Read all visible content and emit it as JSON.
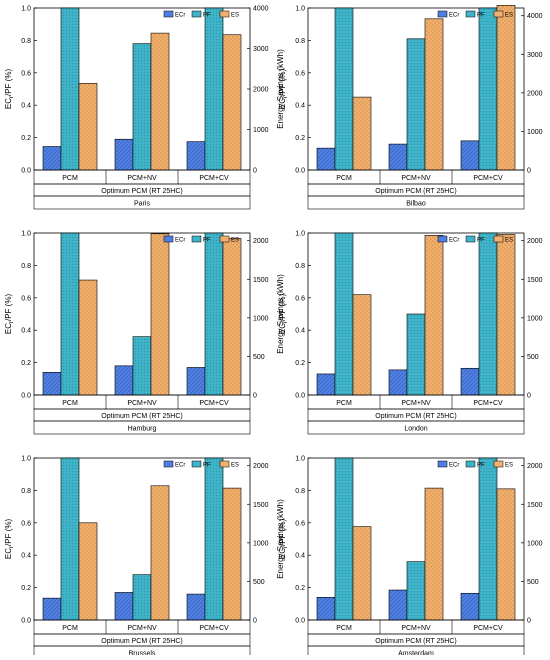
{
  "legend_labels": [
    "ECr",
    "PF",
    "ES"
  ],
  "colors": {
    "ECr": "#4f7fe0",
    "PF": "#3fb3c8",
    "ES": "#f1b06e",
    "axis": "#000000"
  },
  "chart_data": [
    {
      "type": "bar",
      "city": "Paris",
      "group_label": "Optimum PCM (RT 25HC)",
      "categories": [
        "PCM",
        "PCM+NV",
        "PCM+CV"
      ],
      "ylabel_left": "EC_r/PF (%)",
      "ylabel_right": "Energy Savings (kWh)",
      "ylim_left": [
        0,
        1.0
      ],
      "ylim_right": [
        0,
        4000
      ],
      "left_ticks": [
        "0.0",
        "0.2",
        "0.4",
        "0.6",
        "0.8",
        "1.0"
      ],
      "right_ticks": [
        "0",
        "1000",
        "2000",
        "3000",
        "4000"
      ],
      "legend": "top-right",
      "series": [
        {
          "name": "ECr",
          "axis": "left",
          "values": [
            0.145,
            0.19,
            0.175
          ]
        },
        {
          "name": "PF",
          "axis": "left",
          "values": [
            1.0,
            0.78,
            1.0
          ]
        },
        {
          "name": "ES",
          "axis": "right",
          "values": [
            2140,
            3380,
            3340
          ]
        }
      ]
    },
    {
      "type": "bar",
      "city": "Bilbao",
      "group_label": "Optimum PCM (RT 25HC)",
      "categories": [
        "PCM",
        "PCM+NV",
        "PCM+CV"
      ],
      "ylabel_left": "EC_r/PF (%)",
      "ylabel_right": "Energy Savings (kWh)",
      "ylim_left": [
        0,
        1.0
      ],
      "ylim_right": [
        0,
        4200
      ],
      "left_ticks": [
        "0.0",
        "0.2",
        "0.4",
        "0.6",
        "0.8",
        "1.0"
      ],
      "right_ticks": [
        "0",
        "1000",
        "2000",
        "3000",
        "4000"
      ],
      "legend": "top-right",
      "series": [
        {
          "name": "ECr",
          "axis": "left",
          "values": [
            0.135,
            0.16,
            0.18
          ]
        },
        {
          "name": "PF",
          "axis": "left",
          "values": [
            1.0,
            0.81,
            1.0
          ]
        },
        {
          "name": "ES",
          "axis": "right",
          "values": [
            1890,
            3920,
            4270
          ]
        }
      ]
    },
    {
      "type": "bar",
      "city": "Hamburg",
      "group_label": "Optimum PCM (RT 25HC)",
      "categories": [
        "PCM",
        "PCM+NV",
        "PCM+CV"
      ],
      "ylabel_left": "EC_r/PF (%)",
      "ylabel_right": "Energy Savings (kWh)",
      "ylim_left": [
        0,
        1.0
      ],
      "ylim_right": [
        0,
        2100
      ],
      "left_ticks": [
        "0.0",
        "0.2",
        "0.4",
        "0.6",
        "0.8",
        "1.0"
      ],
      "right_ticks": [
        "0",
        "500",
        "1000",
        "1500",
        "2000"
      ],
      "legend": "top-right",
      "series": [
        {
          "name": "ECr",
          "axis": "left",
          "values": [
            0.14,
            0.18,
            0.17
          ]
        },
        {
          "name": "PF",
          "axis": "left",
          "values": [
            1.0,
            0.36,
            1.0
          ]
        },
        {
          "name": "ES",
          "axis": "right",
          "values": [
            1490,
            2090,
            2030
          ]
        }
      ]
    },
    {
      "type": "bar",
      "city": "London",
      "group_label": "Optimum PCM (RT 25HC)",
      "categories": [
        "PCM",
        "PCM+NV",
        "PCM+CV"
      ],
      "ylabel_left": "EC_r/PF (%)",
      "ylabel_right": "Energy Savings (kWh)",
      "ylim_left": [
        0,
        1.0
      ],
      "ylim_right": [
        0,
        2100
      ],
      "left_ticks": [
        "0.0",
        "0.2",
        "0.4",
        "0.6",
        "0.8",
        "1.0"
      ],
      "right_ticks": [
        "0",
        "500",
        "1000",
        "1500",
        "2000"
      ],
      "legend": "top-right",
      "series": [
        {
          "name": "ECr",
          "axis": "left",
          "values": [
            0.13,
            0.155,
            0.165
          ]
        },
        {
          "name": "PF",
          "axis": "left",
          "values": [
            1.0,
            0.5,
            1.0
          ]
        },
        {
          "name": "ES",
          "axis": "right",
          "values": [
            1300,
            2070,
            2080
          ]
        }
      ]
    },
    {
      "type": "bar",
      "city": "Brussels",
      "group_label": "Optimum PCM (RT 25HC)",
      "categories": [
        "PCM",
        "PCM+NV",
        "PCM+CV"
      ],
      "ylabel_left": "EC_r/PF (%)",
      "ylabel_right": "Energy Savings (kWh)",
      "ylim_left": [
        0,
        1.0
      ],
      "ylim_right": [
        0,
        2100
      ],
      "left_ticks": [
        "0.0",
        "0.2",
        "0.4",
        "0.6",
        "0.8",
        "1.0"
      ],
      "right_ticks": [
        "0",
        "500",
        "1000",
        "1500",
        "2000"
      ],
      "legend": "top-right",
      "series": [
        {
          "name": "ECr",
          "axis": "left",
          "values": [
            0.135,
            0.17,
            0.16
          ]
        },
        {
          "name": "PF",
          "axis": "left",
          "values": [
            1.0,
            0.28,
            1.0
          ]
        },
        {
          "name": "ES",
          "axis": "right",
          "values": [
            1260,
            1740,
            1710
          ]
        }
      ]
    },
    {
      "type": "bar",
      "city": "Amsterdam",
      "group_label": "Optimum PCM (RT 25HC)",
      "categories": [
        "PCM",
        "PCM+NV",
        "PCM+CV"
      ],
      "ylabel_left": "EC_r/PF (%)",
      "ylabel_right": "Energy Savings (kWh)",
      "ylim_left": [
        0,
        1.0
      ],
      "ylim_right": [
        0,
        2100
      ],
      "left_ticks": [
        "0.0",
        "0.2",
        "0.4",
        "0.6",
        "0.8",
        "1.0"
      ],
      "right_ticks": [
        "0",
        "500",
        "1000",
        "1500",
        "2000"
      ],
      "legend": "top-right",
      "series": [
        {
          "name": "ECr",
          "axis": "left",
          "values": [
            0.14,
            0.185,
            0.165
          ]
        },
        {
          "name": "PF",
          "axis": "left",
          "values": [
            1.0,
            0.36,
            1.0
          ]
        },
        {
          "name": "ES",
          "axis": "right",
          "values": [
            1210,
            1710,
            1700
          ]
        }
      ]
    }
  ]
}
